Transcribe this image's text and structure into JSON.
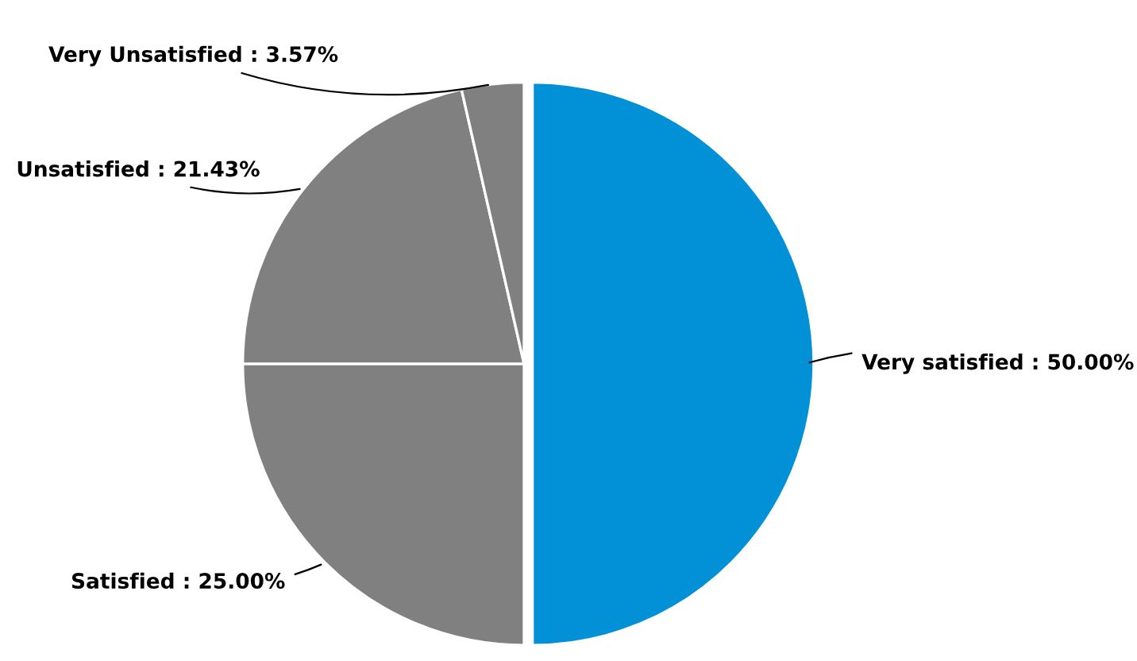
{
  "chart_data": {
    "type": "pie",
    "categories": [
      "Very satisfied",
      "Satisfied",
      "Unsatisfied",
      "Very Unsatisfied"
    ],
    "values": [
      50.0,
      25.0,
      21.43,
      3.57
    ],
    "value_labels": [
      "50.00%",
      "25.00%",
      "21.43%",
      "3.57%"
    ],
    "colors": [
      "#0290d6",
      "#808080",
      "#808080",
      "#808080"
    ]
  }
}
